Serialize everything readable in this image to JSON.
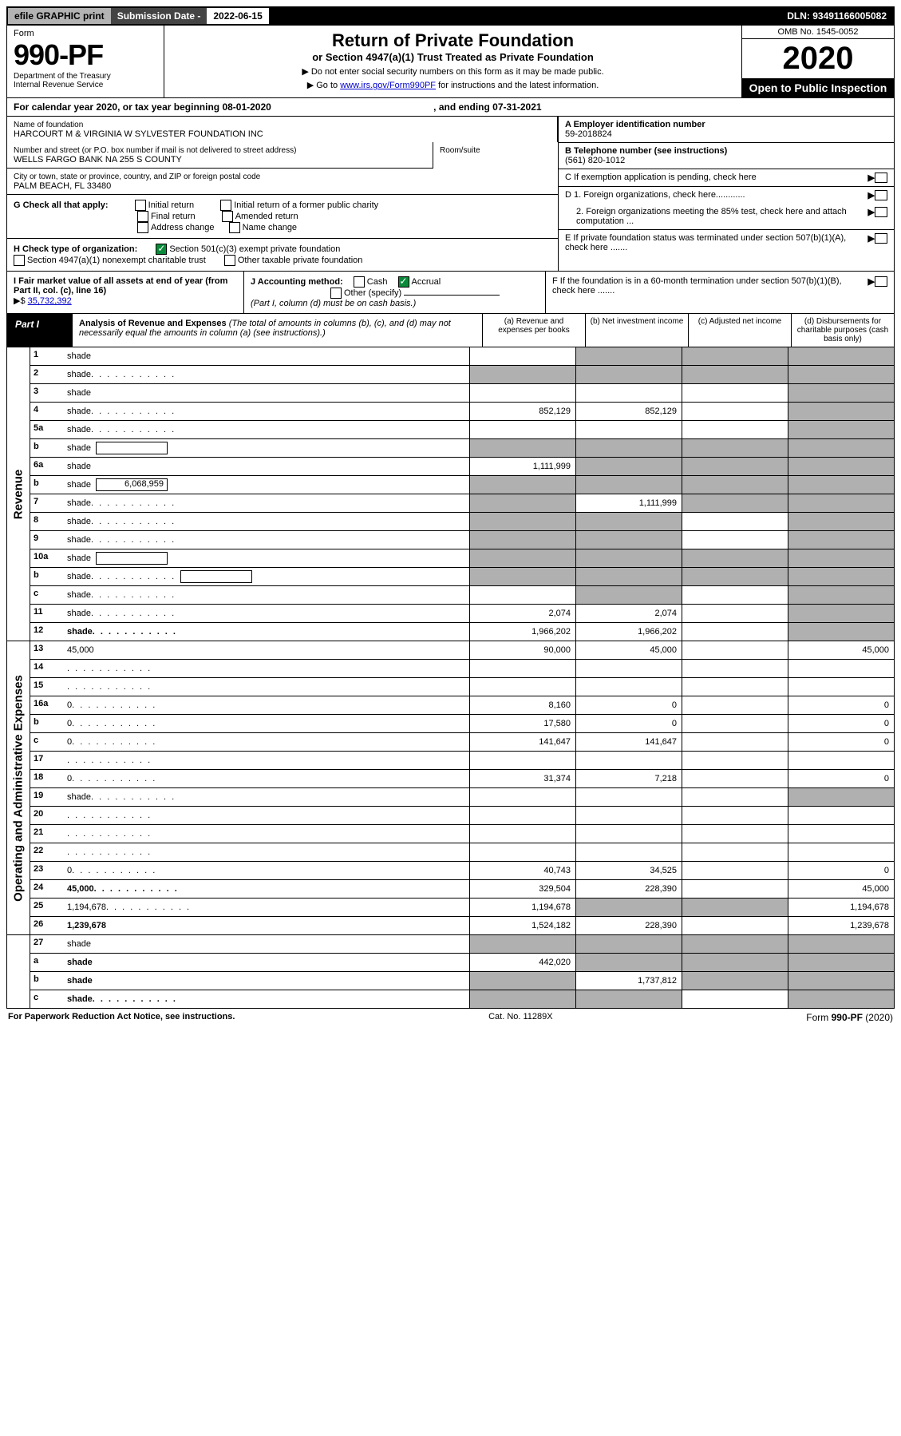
{
  "topbar": {
    "efile": "efile GRAPHIC print",
    "subdate_label": "Submission Date - ",
    "subdate": "2022-06-15",
    "dln": "DLN: 93491166005082"
  },
  "header": {
    "form_label": "Form",
    "form_num": "990-PF",
    "dept1": "Department of the Treasury",
    "dept2": "Internal Revenue Service",
    "title": "Return of Private Foundation",
    "subtitle": "or Section 4947(a)(1) Trust Treated as Private Foundation",
    "instr1": "▶ Do not enter social security numbers on this form as it may be made public.",
    "instr2_pre": "▶ Go to ",
    "instr2_link": "www.irs.gov/Form990PF",
    "instr2_post": " for instructions and the latest information.",
    "omb": "OMB No. 1545-0052",
    "year": "2020",
    "open": "Open to Public Inspection"
  },
  "calyear": {
    "line": "For calendar year 2020, or tax year beginning 08-01-2020",
    "end": ", and ending 07-31-2021"
  },
  "info": {
    "name_lbl": "Name of foundation",
    "name": "HARCOURT M & VIRGINIA W SYLVESTER FOUNDATION INC",
    "addr_lbl": "Number and street (or P.O. box number if mail is not delivered to street address)",
    "addr": "WELLS FARGO BANK NA 255 S COUNTY",
    "room_lbl": "Room/suite",
    "city_lbl": "City or town, state or province, country, and ZIP or foreign postal code",
    "city": "PALM BEACH, FL  33480",
    "ein_lbl": "A Employer identification number",
    "ein": "59-2018824",
    "tel_lbl": "B Telephone number (see instructions)",
    "tel": "(561) 820-1012",
    "c_lbl": "C If exemption application is pending, check here",
    "d1": "D 1. Foreign organizations, check here............",
    "d2": "2. Foreign organizations meeting the 85% test, check here and attach computation ...",
    "e": "E  If private foundation status was terminated under section 507(b)(1)(A), check here .......",
    "f": "F  If the foundation is in a 60-month termination under section 507(b)(1)(B), check here .......",
    "g_lbl": "G Check all that apply:",
    "g_opts": [
      "Initial return",
      "Initial return of a former public charity",
      "Final return",
      "Amended return",
      "Address change",
      "Name change"
    ],
    "h_lbl": "H Check type of organization:",
    "h_opt1": "Section 501(c)(3) exempt private foundation",
    "h_opt2": "Section 4947(a)(1) nonexempt charitable trust",
    "h_opt3": "Other taxable private foundation",
    "i_lbl": "I Fair market value of all assets at end of year (from Part II, col. (c), line 16)",
    "i_val": "35,732,392",
    "j_lbl": "J Accounting method:",
    "j_cash": "Cash",
    "j_accrual": "Accrual",
    "j_other": "Other (specify)",
    "j_note": "(Part I, column (d) must be on cash basis.)"
  },
  "part1": {
    "label": "Part I",
    "title": "Analysis of Revenue and Expenses",
    "title_note": " (The total of amounts in columns (b), (c), and (d) may not necessarily equal the amounts in column (a) (see instructions).)",
    "cols": {
      "a": "(a)    Revenue and expenses per books",
      "b": "(b)    Net investment income",
      "c": "(c)   Adjusted net income",
      "d": "(d)   Disbursements for charitable purposes (cash basis only)"
    }
  },
  "sidelabels": {
    "revenue": "Revenue",
    "expenses": "Operating and Administrative Expenses"
  },
  "rows": [
    {
      "n": "1",
      "d": "shade",
      "a": "",
      "b": "shade",
      "c": "shade"
    },
    {
      "n": "2",
      "d": "shade",
      "dots": true,
      "a": "shade",
      "b": "shade",
      "c": "shade"
    },
    {
      "n": "3",
      "d": "shade",
      "a": "",
      "b": "",
      "c": ""
    },
    {
      "n": "4",
      "d": "shade",
      "dots": true,
      "a": "852,129",
      "b": "852,129",
      "c": ""
    },
    {
      "n": "5a",
      "d": "shade",
      "dots": true,
      "a": "",
      "b": "",
      "c": ""
    },
    {
      "n": "b",
      "d": "shade",
      "box": "",
      "a": "shade",
      "b": "shade",
      "c": "shade"
    },
    {
      "n": "6a",
      "d": "shade",
      "a": "1,111,999",
      "b": "shade",
      "c": "shade"
    },
    {
      "n": "b",
      "d": "shade",
      "box": "6,068,959",
      "a": "shade",
      "b": "shade",
      "c": "shade"
    },
    {
      "n": "7",
      "d": "shade",
      "dots": true,
      "a": "shade",
      "b": "1,111,999",
      "c": "shade"
    },
    {
      "n": "8",
      "d": "shade",
      "dots": true,
      "a": "shade",
      "b": "shade",
      "c": ""
    },
    {
      "n": "9",
      "d": "shade",
      "dots": true,
      "a": "shade",
      "b": "shade",
      "c": ""
    },
    {
      "n": "10a",
      "d": "shade",
      "box": "",
      "a": "shade",
      "b": "shade",
      "c": "shade"
    },
    {
      "n": "b",
      "d": "shade",
      "dots": true,
      "box": "",
      "a": "shade",
      "b": "shade",
      "c": "shade"
    },
    {
      "n": "c",
      "d": "shade",
      "dots": true,
      "a": "",
      "b": "shade",
      "c": ""
    },
    {
      "n": "11",
      "d": "shade",
      "dots": true,
      "a": "2,074",
      "b": "2,074",
      "c": ""
    },
    {
      "n": "12",
      "d": "shade",
      "bold": true,
      "dots": true,
      "a": "1,966,202",
      "b": "1,966,202",
      "c": ""
    }
  ],
  "exp_rows": [
    {
      "n": "13",
      "d": "45,000",
      "a": "90,000",
      "b": "45,000",
      "c": ""
    },
    {
      "n": "14",
      "d": "",
      "dots": true,
      "a": "",
      "b": "",
      "c": ""
    },
    {
      "n": "15",
      "d": "",
      "dots": true,
      "a": "",
      "b": "",
      "c": ""
    },
    {
      "n": "16a",
      "d": "0",
      "dots": true,
      "a": "8,160",
      "b": "0",
      "c": ""
    },
    {
      "n": "b",
      "d": "0",
      "dots": true,
      "a": "17,580",
      "b": "0",
      "c": ""
    },
    {
      "n": "c",
      "d": "0",
      "dots": true,
      "a": "141,647",
      "b": "141,647",
      "c": ""
    },
    {
      "n": "17",
      "d": "",
      "dots": true,
      "a": "",
      "b": "",
      "c": ""
    },
    {
      "n": "18",
      "d": "0",
      "dots": true,
      "a": "31,374",
      "b": "7,218",
      "c": ""
    },
    {
      "n": "19",
      "d": "shade",
      "dots": true,
      "a": "",
      "b": "",
      "c": ""
    },
    {
      "n": "20",
      "d": "",
      "dots": true,
      "a": "",
      "b": "",
      "c": ""
    },
    {
      "n": "21",
      "d": "",
      "dots": true,
      "a": "",
      "b": "",
      "c": ""
    },
    {
      "n": "22",
      "d": "",
      "dots": true,
      "a": "",
      "b": "",
      "c": ""
    },
    {
      "n": "23",
      "d": "0",
      "dots": true,
      "a": "40,743",
      "b": "34,525",
      "c": ""
    },
    {
      "n": "24",
      "d": "45,000",
      "bold": true,
      "dots": true,
      "a": "329,504",
      "b": "228,390",
      "c": ""
    },
    {
      "n": "25",
      "d": "1,194,678",
      "dots": true,
      "a": "1,194,678",
      "b": "shade",
      "c": "shade"
    },
    {
      "n": "26",
      "d": "1,239,678",
      "bold": true,
      "a": "1,524,182",
      "b": "228,390",
      "c": ""
    }
  ],
  "bottom_rows": [
    {
      "n": "27",
      "d": "shade",
      "a": "shade",
      "b": "shade",
      "c": "shade"
    },
    {
      "n": "a",
      "d": "shade",
      "bold": true,
      "a": "442,020",
      "b": "shade",
      "c": "shade"
    },
    {
      "n": "b",
      "d": "shade",
      "bold": true,
      "a": "shade",
      "b": "1,737,812",
      "c": "shade"
    },
    {
      "n": "c",
      "d": "shade",
      "bold": true,
      "dots": true,
      "a": "shade",
      "b": "shade",
      "c": ""
    }
  ],
  "footer": {
    "left": "For Paperwork Reduction Act Notice, see instructions.",
    "cat": "Cat. No. 11289X",
    "form": "Form 990-PF (2020)"
  }
}
